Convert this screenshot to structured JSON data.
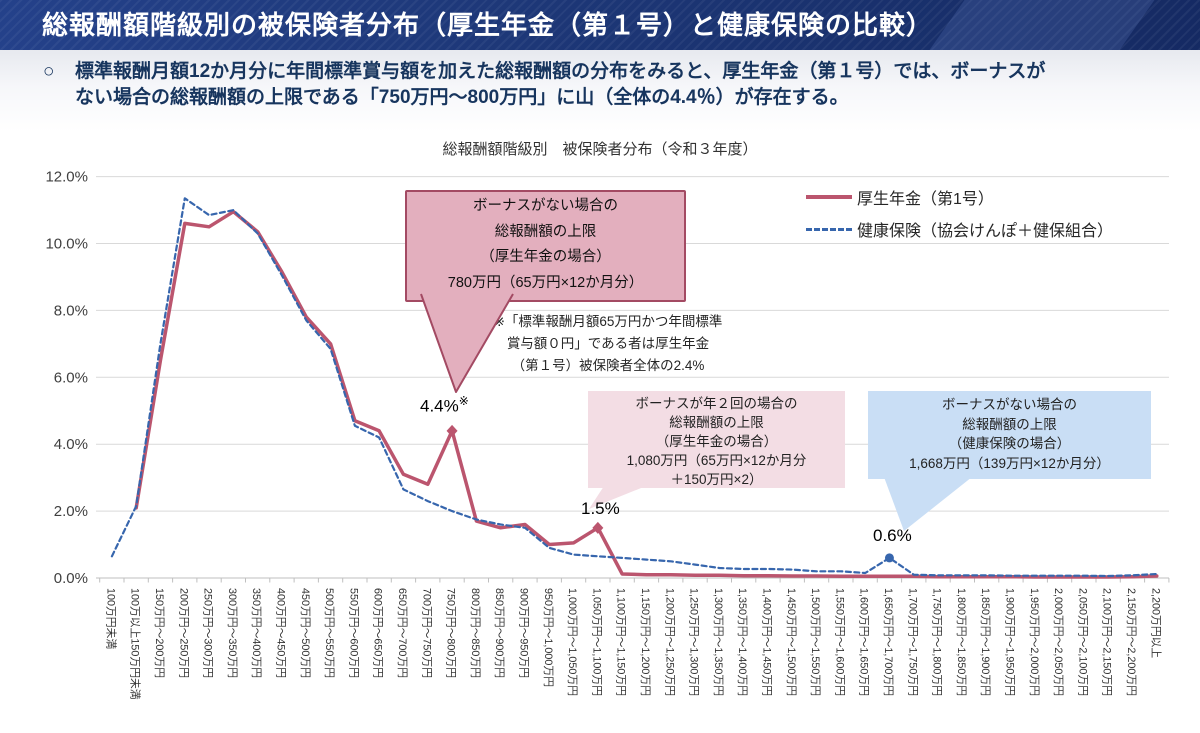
{
  "header": {
    "title": "総報酬額階級別の被保険者分布（厚生年金（第１号）と健康保険の比較）",
    "bg_color": "#1d3777"
  },
  "intro": {
    "bullet": "○",
    "text": "標準報酬月額12か月分に年間標準賞与額を加えた総報酬額の分布をみると、厚生年金（第１号）では、ボーナスが\nない場合の総報酬額の上限である「750万円～800万円」に山（全体の4.4％）が存在する。"
  },
  "chart_data": {
    "type": "line",
    "title": "総報酬額階級別　被保険者分布（令和３年度）",
    "categories": [
      "100万円未満",
      "100万以上150万円未満",
      "150万円～200万円",
      "200万円～250万円",
      "250万円～300万円",
      "300万円～350万円",
      "350万円～400万円",
      "400万円～450万円",
      "450万円～500万円",
      "500万円～550万円",
      "550万円～600万円",
      "600万円～650万円",
      "650万円～700万円",
      "700万円～750万円",
      "750万円～800万円",
      "800万円～850万円",
      "850万円～900万円",
      "900万円～950万円",
      "950万円～1,000万円",
      "1,000万円～1,050万円",
      "1,050万円～1,100万円",
      "1,100万円～1,150万円",
      "1,150万円～1,200万円",
      "1,200万円～1,250万円",
      "1,250万円～1,300万円",
      "1,300万円～1,350万円",
      "1,350万円～1,400万円",
      "1,400万円～1,450万円",
      "1,450万円～1,500万円",
      "1,500万円～1,550万円",
      "1,550万円～1,600万円",
      "1,600万円～1,650万円",
      "1,650万円～1,700万円",
      "1,700万円～1,750万円",
      "1,750万円～1,800万円",
      "1,800万円～1,850万円",
      "1,850万円～1,900万円",
      "1,900万円～1,950万円",
      "1,950万円～2,000万円",
      "2,000万円～2,050万円",
      "2,050万円～2,100万円",
      "2,100万円～2,150万円",
      "2,150万円～2,200万円",
      "2,200万円以上"
    ],
    "series": [
      {
        "name": "厚生年金（第1号）",
        "color": "#bb556e",
        "style": "solid",
        "values": [
          null,
          2.1,
          6.5,
          10.6,
          10.5,
          10.95,
          10.35,
          9.15,
          7.8,
          7.0,
          4.7,
          4.4,
          3.1,
          2.8,
          4.4,
          1.7,
          1.5,
          1.6,
          1.0,
          1.05,
          1.5,
          0.12,
          0.1,
          0.1,
          0.08,
          0.08,
          0.07,
          0.07,
          0.06,
          0.06,
          0.05,
          0.05,
          0.05,
          0.05,
          0.04,
          0.04,
          0.04,
          0.04,
          0.03,
          0.03,
          0.03,
          0.03,
          0.04,
          0.06
        ]
      },
      {
        "name": "健康保険（協会けんぽ＋健保組合）",
        "color": "#3766ad",
        "style": "dashed",
        "values": [
          0.65,
          2.15,
          7.0,
          11.35,
          10.85,
          11.0,
          10.3,
          9.05,
          7.7,
          6.85,
          4.55,
          4.2,
          2.65,
          2.3,
          2.0,
          1.75,
          1.6,
          1.5,
          0.9,
          0.7,
          0.65,
          0.6,
          0.55,
          0.5,
          0.4,
          0.3,
          0.27,
          0.27,
          0.25,
          0.2,
          0.2,
          0.15,
          0.6,
          0.1,
          0.08,
          0.08,
          0.08,
          0.07,
          0.07,
          0.07,
          0.07,
          0.06,
          0.08,
          0.12
        ]
      }
    ],
    "ylim": [
      0,
      12
    ],
    "ytick_step": 2,
    "ytick_labels": [
      "0.0%",
      "2.0%",
      "4.0%",
      "6.0%",
      "8.0%",
      "10.0%",
      "12.0%"
    ],
    "grid": true,
    "legend_position": "top-right",
    "point_labels": [
      {
        "series": 0,
        "category_index": 14,
        "text": "4.4%",
        "sup": "※",
        "marker": "diamond"
      },
      {
        "series": 0,
        "category_index": 20,
        "text": "1.5%",
        "sup": "",
        "marker": "diamond"
      },
      {
        "series": 1,
        "category_index": 32,
        "text": "0.6%",
        "sup": "",
        "marker": "circle"
      }
    ]
  },
  "annotations": {
    "callout_pension_no_bonus": {
      "text": "ボーナスがない場合の\n総報酬額の上限\n（厚生年金の場合）\n780万円（65万円×12か月分）",
      "fill": "#e3afbe",
      "border": "#a34a63"
    },
    "callout_pension_two_bonus": {
      "text": "ボーナスが年２回の場合の\n総報酬額の上限\n（厚生年金の場合）\n1,080万円（65万円×12か月分\n＋150万円×2）",
      "fill": "#f3dde4"
    },
    "callout_health_no_bonus": {
      "text": "ボーナスがない場合の\n総報酬額の上限\n（健康保険の場合）\n1,668万円（139万円×12か月分）",
      "fill": "#c9def5"
    },
    "note": {
      "text": "※「標準報酬月額65万円かつ年間標準\n賞与額０円」である者は厚生年金\n（第１号）被保険者全体の2.4%"
    }
  }
}
